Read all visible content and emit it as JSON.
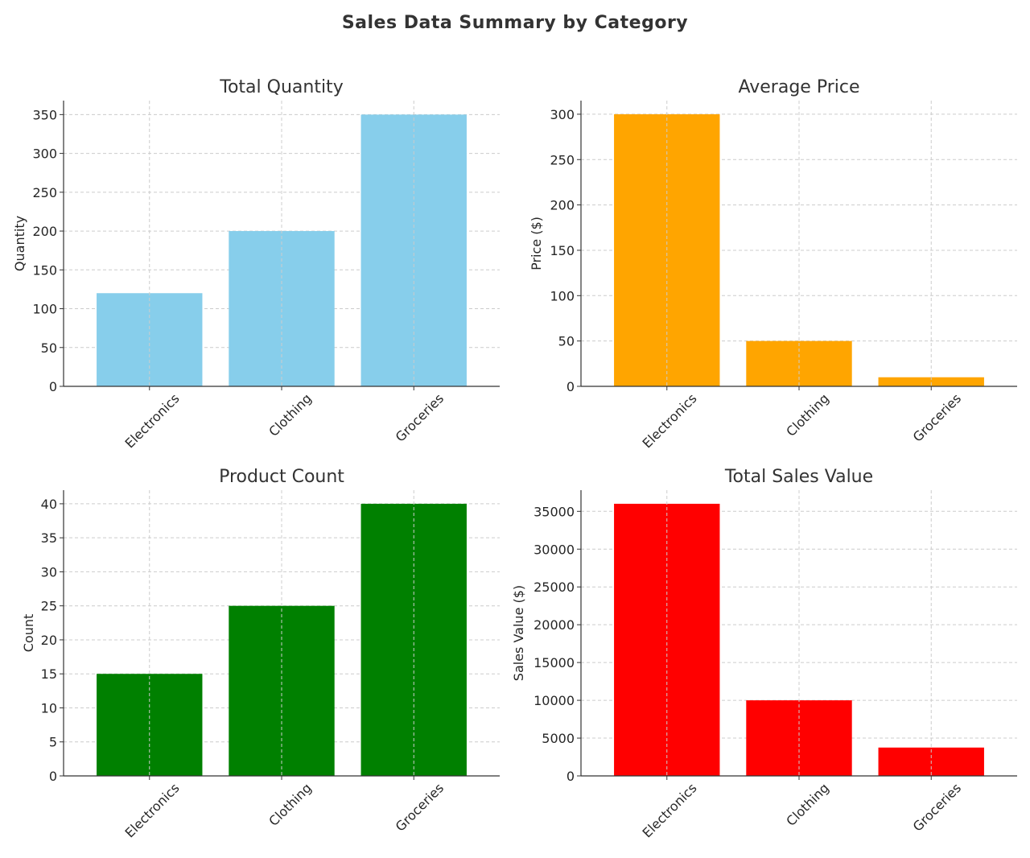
{
  "title": "Sales Data Summary by Category",
  "chart_data": [
    {
      "type": "bar",
      "title": "Total Quantity",
      "xlabel": "",
      "ylabel": "Quantity",
      "categories": [
        "Electronics",
        "Clothing",
        "Groceries"
      ],
      "values": [
        120,
        200,
        350
      ],
      "ylim": [
        0,
        368
      ],
      "yticks": [
        0,
        50,
        100,
        150,
        200,
        250,
        300,
        350
      ],
      "color": "#87CEEB",
      "grid": true
    },
    {
      "type": "bar",
      "title": "Average Price",
      "xlabel": "",
      "ylabel": "Price ($)",
      "categories": [
        "Electronics",
        "Clothing",
        "Groceries"
      ],
      "values": [
        300,
        50,
        10
      ],
      "ylim": [
        0,
        315
      ],
      "yticks": [
        0,
        50,
        100,
        150,
        200,
        250,
        300
      ],
      "color": "#FFA500",
      "grid": true
    },
    {
      "type": "bar",
      "title": "Product Count",
      "xlabel": "",
      "ylabel": "Count",
      "categories": [
        "Electronics",
        "Clothing",
        "Groceries"
      ],
      "values": [
        15,
        25,
        40
      ],
      "ylim": [
        0,
        42
      ],
      "yticks": [
        0,
        5,
        10,
        15,
        20,
        25,
        30,
        35,
        40
      ],
      "color": "#008000",
      "grid": true
    },
    {
      "type": "bar",
      "title": "Total Sales Value",
      "xlabel": "",
      "ylabel": "Sales Value ($)",
      "categories": [
        "Electronics",
        "Clothing",
        "Groceries"
      ],
      "values": [
        36000,
        10000,
        3750
      ],
      "ylim": [
        0,
        37800
      ],
      "yticks": [
        0,
        5000,
        10000,
        15000,
        20000,
        25000,
        30000,
        35000
      ],
      "color": "#FF0000",
      "grid": true
    }
  ]
}
